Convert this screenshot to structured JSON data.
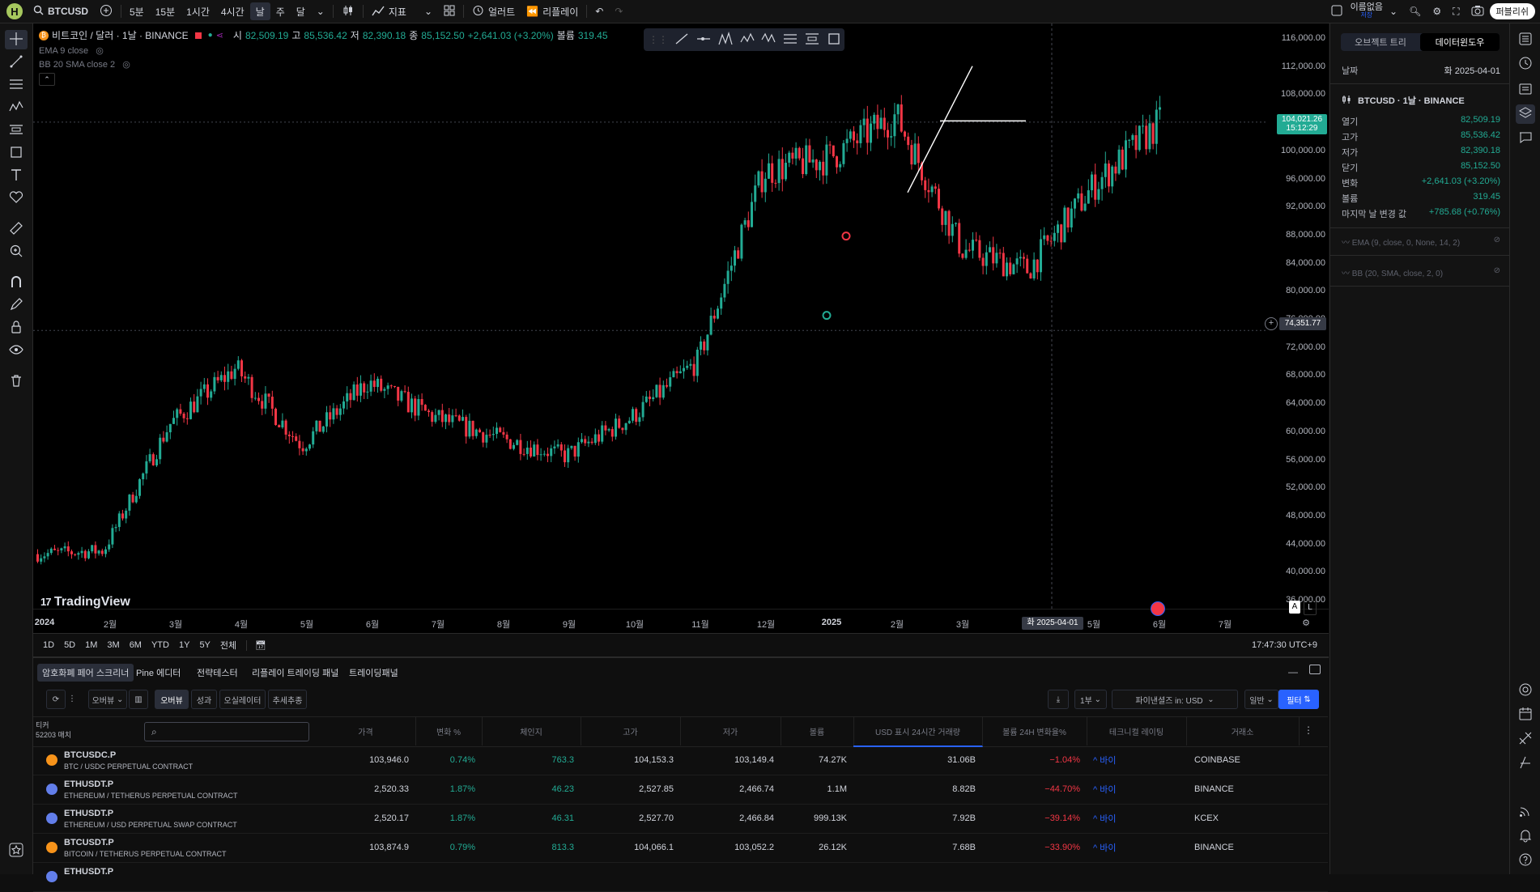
{
  "topbar": {
    "logo": "H",
    "symbol": "BTCUSD",
    "intervals": [
      "5분",
      "15분",
      "1시간",
      "4시간",
      "날",
      "주",
      "달"
    ],
    "active_interval": "날",
    "indicators_label": "지표",
    "alert_label": "얼러트",
    "replay_label": "리플레이",
    "layout_name": "이름없음",
    "layout_sub": "저장",
    "publish_label": "퍼블리쉬"
  },
  "legend": {
    "title": "비트코인 / 달러 · 1날 · BINANCE",
    "o_label": "시",
    "o": "82,509.19",
    "h_label": "고",
    "h": "85,536.42",
    "l_label": "저",
    "l": "82,390.18",
    "c_label": "종",
    "c": "85,152.50",
    "change": "+2,641.03 (+3.20%)",
    "vol_label": "볼륨",
    "vol": "319.45",
    "ind1": "EMA 9 close",
    "ind2": "BB 20 SMA close 2"
  },
  "chart": {
    "brand": "TradingView",
    "current_price": "104,021.26",
    "countdown": "15:12:29",
    "crosshair_price": "74,351.77",
    "crosshair_date": "화 2025-04-01",
    "log_toggle_a": "A",
    "log_toggle_l": "L"
  },
  "chart_data": {
    "type": "candlestick",
    "symbol": "BTCUSD",
    "interval": "1D",
    "exchange": "BINANCE",
    "x": [
      "2024-01",
      "2024-02",
      "2024-03",
      "2024-04",
      "2024-05",
      "2024-06",
      "2024-07",
      "2024-08",
      "2024-09",
      "2024-10",
      "2024-11",
      "2024-12",
      "2025-01",
      "2025-02",
      "2025-03",
      "2025-04",
      "2025-05",
      "2025-06"
    ],
    "close_series": [
      42500,
      43000,
      61000,
      69000,
      58000,
      67000,
      62000,
      59000,
      56500,
      62000,
      70000,
      97000,
      99000,
      105000,
      86000,
      83000,
      95000,
      104000
    ],
    "ylim": [
      36000,
      116000
    ],
    "price_ticks": [
      "116,000.00",
      "112,000.00",
      "108,000.00",
      "104,000.00",
      "100,000.00",
      "96,000.00",
      "92,000.00",
      "88,000.00",
      "84,000.00",
      "80,000.00",
      "76,000.00",
      "72,000.00",
      "68,000.00",
      "64,000.00",
      "60,000.00",
      "56,000.00",
      "52,000.00",
      "48,000.00",
      "44,000.00",
      "40,000.00",
      "36,000.00"
    ],
    "time_ticks": [
      "2024",
      "2월",
      "3월",
      "4월",
      "5월",
      "6월",
      "7월",
      "8월",
      "9월",
      "10월",
      "11월",
      "12월",
      "2025",
      "2월",
      "3월",
      "5월",
      "6월",
      "7월"
    ],
    "horizontal_lines": [
      74351.77,
      104021.26
    ],
    "colors": {
      "up": "#22ab94",
      "down": "#f23645",
      "background": "#000000"
    }
  },
  "range_bar": {
    "ranges": [
      "1D",
      "5D",
      "1M",
      "3M",
      "6M",
      "YTD",
      "1Y",
      "5Y",
      "전체"
    ],
    "clock": "17:47:30 UTC+9"
  },
  "side_panel": {
    "tab_objects": "오브젝트 트리",
    "tab_data": "데이터윈도우",
    "date_label": "날짜",
    "date_value": "화 2025-04-01",
    "symbol_line": "BTCUSD · 1날 · BINANCE",
    "rows": [
      {
        "k": "열기",
        "v": "82,509.19"
      },
      {
        "k": "고가",
        "v": "85,536.42"
      },
      {
        "k": "저가",
        "v": "82,390.18"
      },
      {
        "k": "닫기",
        "v": "85,152.50"
      },
      {
        "k": "변화",
        "v": "+2,641.03 (+3.20%)"
      },
      {
        "k": "볼륨",
        "v": "319.45"
      },
      {
        "k": "마지막 날 변경 값",
        "v": "+785.68 (+0.76%)"
      }
    ],
    "ema": "EMA (9, close, 0, None, 14, 2)",
    "bb": "BB (20, SMA, close, 2, 0)"
  },
  "bottom": {
    "tabs": [
      "암호화폐 페어 스크리너",
      "Pine 에디터",
      "전략테스터",
      "리플레이 트레이딩 패널",
      "트레이딩패널"
    ],
    "view_select": "오버뷰",
    "view_btns": [
      "오버뷰",
      "성과",
      "오실레이터",
      "추세추종"
    ],
    "period": "1부",
    "filter_pairs": "파이낸셜즈 in: USD",
    "filter_type": "일반",
    "filter_btn": "필터",
    "ticker_header": "티커",
    "ticker_count": "52203 매치",
    "columns": [
      "가격",
      "변화 %",
      "체인지",
      "고가",
      "저가",
      "볼륨",
      "USD 표시 24시간 거래량",
      "볼륨 24H 변화율%",
      "테크니컬 레이팅",
      "거래소"
    ],
    "rows": [
      {
        "sym": "BTCUSDC.P",
        "desc": "BTC / USDC PERPETUAL CONTRACT",
        "price": "103,946.0",
        "chg_pct": "0.74%",
        "chg": "763.3",
        "high": "104,153.3",
        "low": "103,149.4",
        "vol": "74.27K",
        "usd_vol": "31.06B",
        "vol_chg": "−1.04%",
        "rating": "^ 바이",
        "exch": "COINBASE",
        "coin_color": "#f7931a"
      },
      {
        "sym": "ETHUSDT.P",
        "desc": "ETHEREUM / TETHERUS PERPETUAL CONTRACT",
        "price": "2,520.33",
        "chg_pct": "1.87%",
        "chg": "46.23",
        "high": "2,527.85",
        "low": "2,466.74",
        "vol": "1.1M",
        "usd_vol": "8.82B",
        "vol_chg": "−44.70%",
        "rating": "^ 바이",
        "exch": "BINANCE",
        "coin_color": "#627eea"
      },
      {
        "sym": "ETHUSDT.P",
        "desc": "ETHEREUM / USD PERPETUAL SWAP CONTRACT",
        "price": "2,520.17",
        "chg_pct": "1.87%",
        "chg": "46.31",
        "high": "2,527.70",
        "low": "2,466.84",
        "vol": "999.13K",
        "usd_vol": "7.92B",
        "vol_chg": "−39.14%",
        "rating": "^ 바이",
        "exch": "KCEX",
        "coin_color": "#627eea"
      },
      {
        "sym": "BTCUSDT.P",
        "desc": "BITCOIN / TETHERUS PERPETUAL CONTRACT",
        "price": "103,874.9",
        "chg_pct": "0.79%",
        "chg": "813.3",
        "high": "104,066.1",
        "low": "103,052.2",
        "vol": "26.12K",
        "usd_vol": "7.68B",
        "vol_chg": "−33.90%",
        "rating": "^ 바이",
        "exch": "BINANCE",
        "coin_color": "#f7931a"
      },
      {
        "sym": "ETHUSDT.P",
        "desc": "",
        "price": "",
        "chg_pct": "",
        "chg": "",
        "high": "",
        "low": "",
        "vol": "",
        "usd_vol": "",
        "vol_chg": "",
        "rating": "",
        "exch": "",
        "coin_color": "#627eea"
      }
    ]
  }
}
